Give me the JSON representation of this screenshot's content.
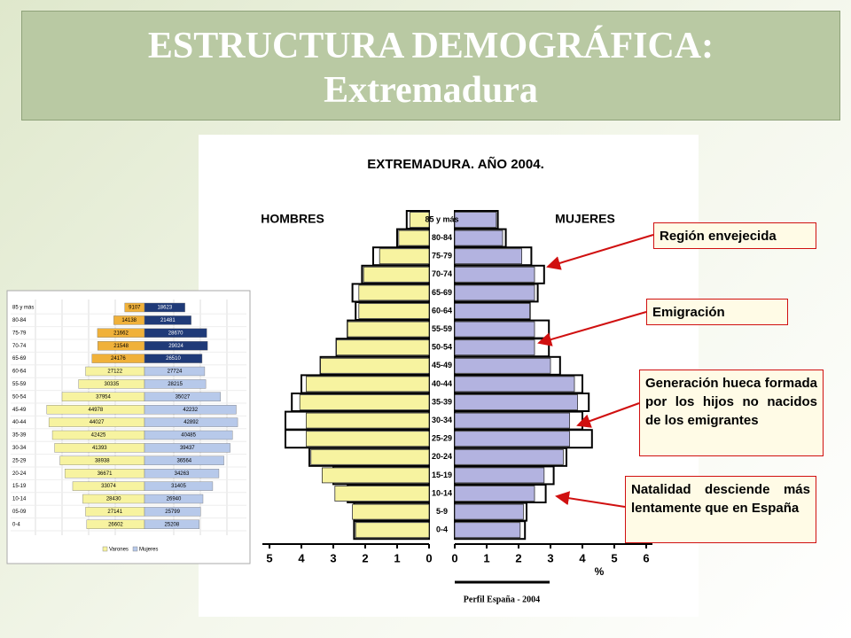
{
  "slide": {
    "title": "ESTRUCTURA DEMOGRÁFICA:",
    "subtitle": "Extremadura",
    "callouts": [
      "Región envejecida",
      "Emigración",
      "Generación hueca formada por los hijos no nacidos de los emigrantes",
      "Natalidad desciende más lentamente que en España"
    ]
  },
  "chart_data": [
    {
      "type": "pyramid",
      "title": "EXTREMADURA. AÑO 2004.",
      "xlabel": "%",
      "left_label": "HOMBRES",
      "right_label": "MUJERES",
      "categories": [
        "85 y más",
        "80-84",
        "75-79",
        "70-74",
        "65-69",
        "60-64",
        "55-59",
        "50-54",
        "45-49",
        "40-44",
        "35-39",
        "30-34",
        "25-29",
        "20-24",
        "15-19",
        "10-14",
        "5-9",
        "0-4"
      ],
      "series": [
        {
          "name": "HOMBRES",
          "color": "#f7f3a0",
          "values": [
            0.6,
            0.95,
            1.55,
            2.05,
            2.2,
            2.2,
            2.55,
            2.9,
            3.4,
            3.85,
            4.05,
            3.85,
            3.85,
            3.7,
            3.35,
            2.95,
            2.4,
            2.3
          ]
        },
        {
          "name": "MUJERES",
          "color": "#b3b3e0",
          "values": [
            1.3,
            1.5,
            2.1,
            2.5,
            2.5,
            2.35,
            2.5,
            2.5,
            3.0,
            3.75,
            3.85,
            3.6,
            3.6,
            3.4,
            2.8,
            2.5,
            2.15,
            2.05
          ]
        }
      ],
      "outline": {
        "name": "Perfil España - 2004",
        "hombres": [
          0.7,
          1.0,
          1.75,
          2.1,
          2.4,
          2.3,
          2.55,
          2.9,
          3.4,
          4.0,
          4.3,
          4.5,
          4.5,
          3.75,
          3.0,
          2.55,
          2.35,
          2.35
        ],
        "mujeres": [
          1.35,
          1.6,
          2.4,
          2.8,
          2.6,
          2.35,
          2.95,
          2.95,
          3.3,
          4.0,
          4.2,
          4.0,
          4.3,
          3.5,
          3.1,
          2.85,
          2.25,
          2.2
        ]
      },
      "xticks_hombres": [
        5,
        4,
        3,
        2,
        1,
        0
      ],
      "xticks_mujeres": [
        0,
        1,
        2,
        3,
        4,
        5,
        6
      ]
    },
    {
      "type": "pyramid-small",
      "categories": [
        "85 y más",
        "80-84",
        "75-79",
        "70-74",
        "65-69",
        "60-64",
        "55-59",
        "50-54",
        "45-49",
        "40-44",
        "35-39",
        "30-34",
        "25-29",
        "20-24",
        "15-19",
        "10-14",
        "05-09",
        "0-4"
      ],
      "series": [
        {
          "name": "Varones",
          "color": "#f7f3a0",
          "colors": [
            "#f0b13a",
            "#f0b13a",
            "#f0b13a",
            "#f0b13a",
            "#f0b13a",
            "#f7f3a0",
            "#f7f3a0",
            "#f7f3a0",
            "#f7f3a0",
            "#f7f3a0",
            "#f7f3a0",
            "#f7f3a0",
            "#f7f3a0",
            "#f7f3a0",
            "#f7f3a0",
            "#f7f3a0",
            "#f7f3a0",
            "#f7f3a0"
          ],
          "values": [
            9107,
            14138,
            21662,
            21548,
            24176,
            27122,
            30335,
            37954,
            44978,
            44027,
            42425,
            41393,
            38938,
            36671,
            33074,
            28430,
            27141,
            26602
          ]
        },
        {
          "name": "Mujeres",
          "color": "#b7c9ea",
          "colors": [
            "#1f3a78",
            "#1f3a78",
            "#1f3a78",
            "#1f3a78",
            "#1f3a78",
            "#b7c9ea",
            "#b7c9ea",
            "#b7c9ea",
            "#b7c9ea",
            "#b7c9ea",
            "#b7c9ea",
            "#b7c9ea",
            "#b7c9ea",
            "#b7c9ea",
            "#b7c9ea",
            "#b7c9ea",
            "#b7c9ea",
            "#b7c9ea"
          ],
          "values": [
            18623,
            21481,
            28670,
            29024,
            26510,
            27724,
            28215,
            35027,
            42232,
            42892,
            40485,
            39437,
            36564,
            34263,
            31405,
            26940,
            25799,
            25208
          ]
        }
      ]
    }
  ]
}
